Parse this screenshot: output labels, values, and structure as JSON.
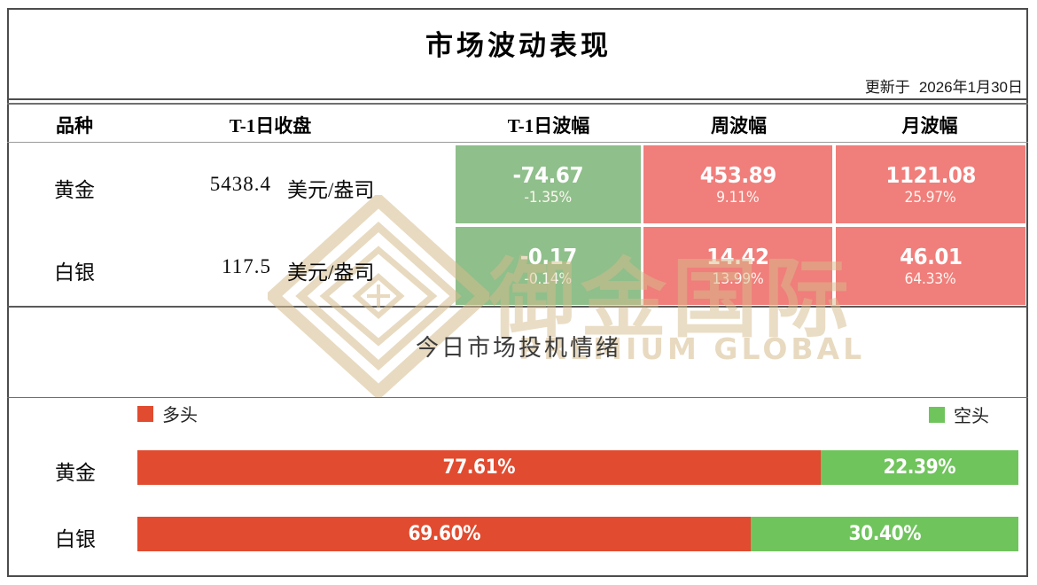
{
  "header": {
    "title": "市场波动表现",
    "updated_label": "更新于",
    "updated_date": "2026年1月30日"
  },
  "table": {
    "columns": [
      "品种",
      "T-1日收盘",
      "T-1日波幅",
      "周波幅",
      "月波幅"
    ],
    "rows": [
      {
        "name": "黄金",
        "close": "5438.4",
        "unit": "美元/盎司",
        "t1": {
          "value": "-74.67",
          "pct": "-1.35%",
          "direction": "down"
        },
        "week": {
          "value": "453.89",
          "pct": "9.11%",
          "direction": "up"
        },
        "month": {
          "value": "1121.08",
          "pct": "25.97%",
          "direction": "up"
        }
      },
      {
        "name": "白银",
        "close": "117.5",
        "unit": "美元/盎司",
        "t1": {
          "value": "-0.17",
          "pct": "-0.14%",
          "direction": "down"
        },
        "week": {
          "value": "14.42",
          "pct": "13.99%",
          "direction": "up"
        },
        "month": {
          "value": "46.01",
          "pct": "64.33%",
          "direction": "up"
        }
      }
    ]
  },
  "sentiment": {
    "title": "今日市场投机情绪",
    "legend": {
      "long": "多头",
      "short": "空头"
    },
    "bars": [
      {
        "name": "黄金",
        "long_pct": 77.61,
        "long_label": "77.61%",
        "short_pct": 22.39,
        "short_label": "22.39%"
      },
      {
        "name": "白银",
        "long_pct": 69.6,
        "long_label": "69.60%",
        "short_pct": 30.4,
        "short_label": "30.40%"
      }
    ]
  },
  "watermark": {
    "chinese": "御金国际",
    "latin": "PREMIUM GLOBAL"
  },
  "colors": {
    "down_green": "#8fbf8b",
    "up_red": "#f07e7b",
    "long_red": "#e14b2f",
    "short_green": "#6fc45c",
    "watermark_tan": "#d6bc8c",
    "border_dark": "#4c4c4c"
  },
  "chart_data": [
    {
      "type": "table",
      "title": "市场波动表现",
      "columns": [
        "品种",
        "T-1日收盘",
        "T-1日波幅",
        "周波幅",
        "月波幅"
      ],
      "rows": [
        [
          "黄金",
          "5438.4 美元/盎司",
          "-74.67 (-1.35%)",
          "453.89 (9.11%)",
          "1121.08 (25.97%)"
        ],
        [
          "白银",
          "117.5 美元/盎司",
          "-0.17 (-0.14%)",
          "14.42 (13.99%)",
          "46.01 (64.33%)"
        ]
      ]
    },
    {
      "type": "bar",
      "subtype": "stacked-horizontal",
      "title": "今日市场投机情绪",
      "categories": [
        "黄金",
        "白银"
      ],
      "series": [
        {
          "name": "多头",
          "values": [
            77.61,
            69.6
          ],
          "color": "#e14b2f"
        },
        {
          "name": "空头",
          "values": [
            22.39,
            30.4
          ],
          "color": "#6fc45c"
        }
      ],
      "xlim": [
        0,
        100
      ],
      "legend_position": "top",
      "value_labels": true
    }
  ]
}
